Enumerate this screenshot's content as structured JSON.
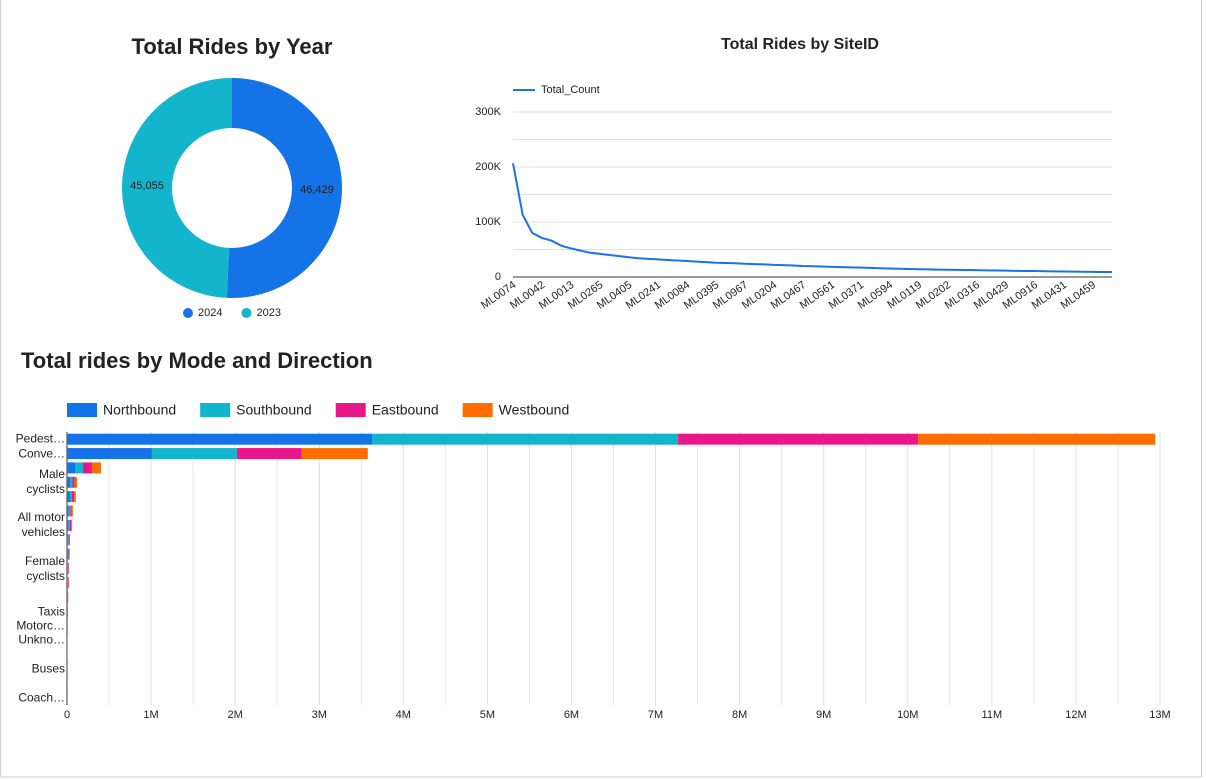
{
  "chart_data": [
    {
      "type": "pie",
      "title": "Total Rides by Year",
      "categories": [
        "2024",
        "2023"
      ],
      "values": [
        46429,
        45055
      ],
      "value_labels": [
        "46,429",
        "45,055"
      ],
      "colors": [
        "#1473e6",
        "#12b5cb"
      ],
      "donut": true,
      "legend": "bottom"
    },
    {
      "type": "line",
      "title": "Total Rides by SiteID",
      "categories": [
        "ML0074",
        null,
        null,
        "ML0042",
        null,
        null,
        "ML0013",
        null,
        null,
        "ML0265",
        null,
        null,
        "ML0405",
        null,
        null,
        "ML0241",
        null,
        null,
        "ML0084",
        null,
        null,
        "ML0395",
        null,
        null,
        "ML0967",
        null,
        null,
        "ML0204",
        null,
        null,
        "ML0467",
        null,
        null,
        "ML0561",
        null,
        null,
        "ML0371",
        null,
        null,
        "ML0594",
        null,
        null,
        "ML0119",
        null,
        null,
        "ML0202",
        null,
        null,
        "ML0316",
        null,
        null,
        "ML0429",
        null,
        null,
        "ML0916",
        null,
        null,
        "ML0431",
        null,
        null,
        "ML0459",
        null,
        null
      ],
      "series": [
        {
          "name": "Total_Count",
          "color": "#1a73e8",
          "values": [
            207000,
            113000,
            80000,
            71000,
            66000,
            57000,
            52000,
            48000,
            44000,
            42000,
            40000,
            38000,
            36000,
            34000,
            33000,
            32000,
            31000,
            30000,
            29000,
            28000,
            27000,
            26000,
            25500,
            25000,
            24000,
            23500,
            23000,
            22000,
            21500,
            21000,
            20000,
            19500,
            19000,
            18500,
            18000,
            17500,
            17000,
            16500,
            16000,
            15500,
            15000,
            14500,
            14000,
            13800,
            13500,
            13200,
            13000,
            12700,
            12400,
            12100,
            11800,
            11500,
            11200,
            11000,
            10800,
            10500,
            10200,
            10000,
            9800,
            9500,
            9300,
            9100,
            9000
          ]
        }
      ],
      "ylim": [
        0,
        300000
      ],
      "yticks": [
        0,
        {
          "value": 100000,
          "label": "100K"
        },
        {
          "value": 200000,
          "label": "200K"
        },
        {
          "value": 300000,
          "label": "300K"
        }
      ],
      "minor_yticks": [
        50000,
        150000,
        250000
      ],
      "grid": true,
      "legend": "top-left"
    },
    {
      "type": "bar",
      "orientation": "horizontal",
      "stacked": true,
      "title": "Total rides by Mode and Direction",
      "categories": [
        "Pedest…",
        "Conve…",
        null,
        "Male cyclists",
        null,
        null,
        "All motor vehicles",
        null,
        null,
        "Female cyclists",
        null,
        null,
        "Taxis",
        "Motorc…",
        "Unkno…",
        null,
        "Buses",
        null,
        "Coach…"
      ],
      "series": [
        {
          "name": "Northbound",
          "color": "#1473e6",
          "values": [
            3628000,
            1010000,
            95000,
            40000,
            35000,
            20000,
            20000,
            10000,
            10000,
            8000,
            7000,
            5000,
            4000,
            3000,
            2000,
            1500,
            1000,
            800,
            500
          ]
        },
        {
          "name": "Southbound",
          "color": "#12b5cb",
          "values": [
            3640000,
            1010000,
            95000,
            25000,
            25000,
            20000,
            15000,
            10000,
            8000,
            8000,
            6000,
            4000,
            3000,
            2000,
            2000,
            1000,
            800,
            600,
            400
          ]
        },
        {
          "name": "Eastbound",
          "color": "#e8178a",
          "values": [
            2855000,
            773000,
            107000,
            25000,
            25000,
            15000,
            15000,
            10000,
            10000,
            6000,
            6000,
            4000,
            3000,
            2000,
            1500,
            1000,
            800,
            500,
            300
          ]
        },
        {
          "name": "Westbound",
          "color": "#ff6d01",
          "values": [
            2820000,
            785000,
            107000,
            30000,
            20000,
            15000,
            10000,
            5000,
            5000,
            4000,
            4000,
            2000,
            2000,
            1000,
            1000,
            500,
            500,
            300,
            200
          ]
        }
      ],
      "xlim": [
        0,
        13000000
      ],
      "xticks": [
        0,
        {
          "value": 1000000,
          "label": "1M"
        },
        {
          "value": 2000000,
          "label": "2M"
        },
        {
          "value": 3000000,
          "label": "3M"
        },
        {
          "value": 4000000,
          "label": "4M"
        },
        {
          "value": 5000000,
          "label": "5M"
        },
        {
          "value": 6000000,
          "label": "6M"
        },
        {
          "value": 7000000,
          "label": "7M"
        },
        {
          "value": 8000000,
          "label": "8M"
        },
        {
          "value": 9000000,
          "label": "9M"
        },
        {
          "value": 10000000,
          "label": "10M"
        },
        {
          "value": 11000000,
          "label": "11M"
        },
        {
          "value": 12000000,
          "label": "12M"
        },
        {
          "value": 13000000,
          "label": "13M"
        }
      ],
      "minor_xticks": [
        500000,
        1500000,
        2500000,
        3500000,
        4500000,
        5500000,
        6500000,
        7500000,
        8500000,
        9500000,
        10500000,
        11500000,
        12500000
      ],
      "grid": true,
      "legend": "top-left"
    }
  ]
}
